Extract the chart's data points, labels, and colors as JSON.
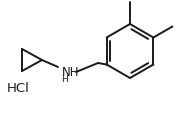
{
  "bg_color": "#ffffff",
  "line_color": "#1a1a1a",
  "line_width": 1.4,
  "font_size": 8.5,
  "hcl_text": "HCl",
  "figsize": [
    1.85,
    1.31
  ],
  "dpi": 100
}
